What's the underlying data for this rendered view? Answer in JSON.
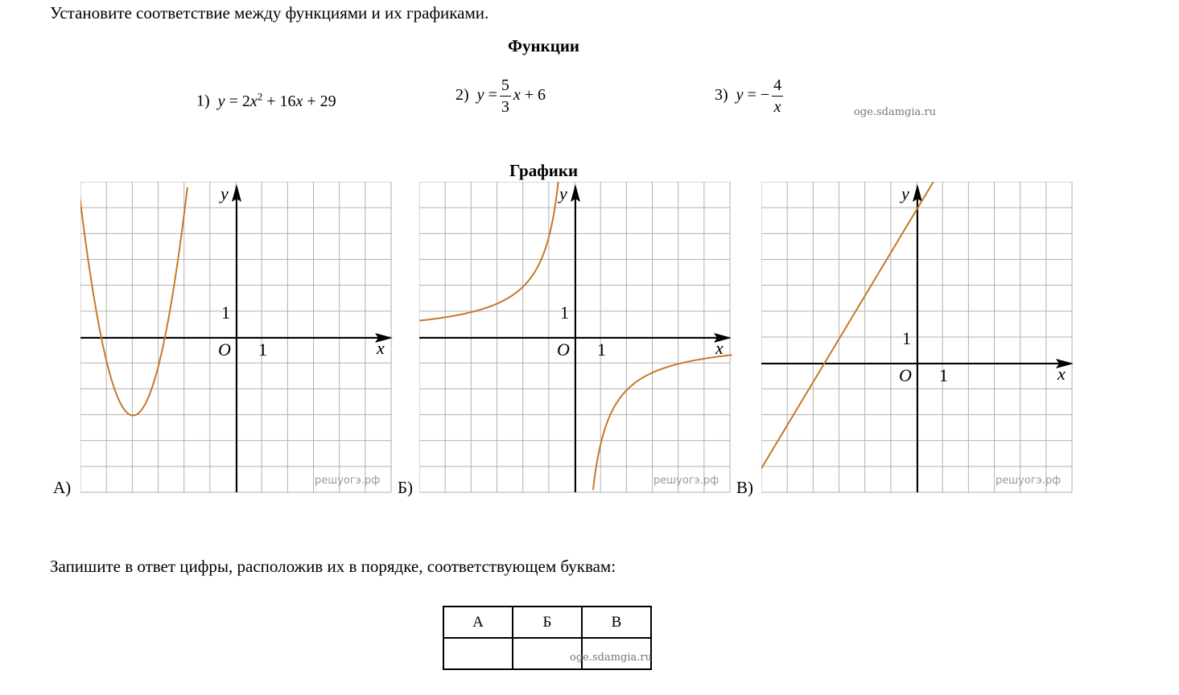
{
  "instruction": "Установите соответствие между функциями и их графиками.",
  "functions_heading": "Функции",
  "functions": [
    {
      "num": "1)"
    },
    {
      "num": "2)"
    },
    {
      "num": "3)"
    }
  ],
  "watermark_top": "oge.sdamgia.ru",
  "graphs_heading": "Графики",
  "graphs": [
    {
      "letter": "А)",
      "watermark": "решуогэ.рф",
      "axis_x": "x",
      "axis_y": "y",
      "origin": "O",
      "unit_x": "1",
      "unit_y": "1",
      "curve_color": "#c8782a"
    },
    {
      "letter": "Б)",
      "watermark": "решуогэ.рф",
      "axis_x": "x",
      "axis_y": "y",
      "origin": "O",
      "unit_x": "1",
      "unit_y": "1",
      "curve_color": "#c8782a"
    },
    {
      "letter": "В)",
      "watermark": "решуогэ.рф",
      "axis_x": "x",
      "axis_y": "y",
      "origin": "O",
      "unit_x": "1",
      "unit_y": "1",
      "curve_color": "#c8782a"
    }
  ],
  "answer_prompt": "Запишите в ответ цифры, расположив их в порядке, соответствующем буквам:",
  "answer_table": {
    "headers": [
      "А",
      "Б",
      "В"
    ],
    "values": [
      "",
      "",
      ""
    ]
  },
  "watermark_bottom": "oge.sdamgia.ru"
}
